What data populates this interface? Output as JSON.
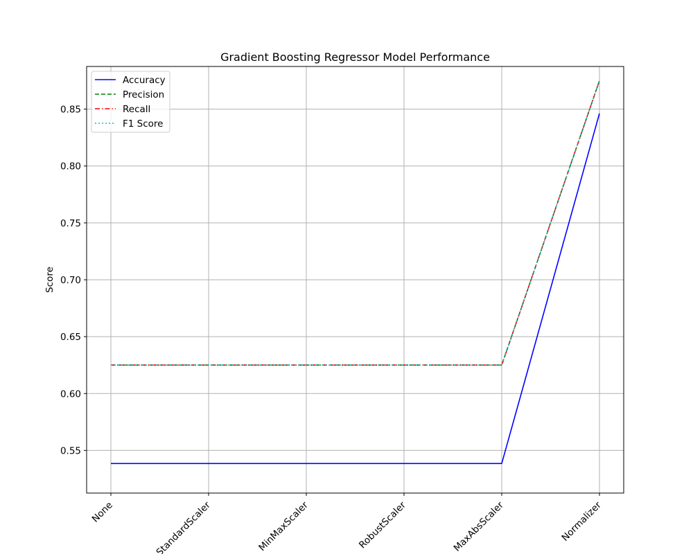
{
  "chart_data": {
    "type": "line",
    "title": "Gradient Boosting Regressor Model Performance",
    "xlabel": "",
    "ylabel": "Score",
    "categories": [
      "None",
      "StandardScaler",
      "MinMaxScaler",
      "RobustScaler",
      "MaxAbsScaler",
      "Normalizer"
    ],
    "ylim": [
      0.5125,
      0.8875
    ],
    "yticks": [
      0.55,
      0.6,
      0.65,
      0.7,
      0.75,
      0.8,
      0.85
    ],
    "ytick_labels": [
      "0.55",
      "0.60",
      "0.65",
      "0.70",
      "0.75",
      "0.80",
      "0.85"
    ],
    "grid": true,
    "legend_position": "upper-left",
    "series": [
      {
        "name": "Accuracy",
        "values": [
          0.5385,
          0.5385,
          0.5385,
          0.5385,
          0.5385,
          0.8462
        ],
        "color": "#0000ff",
        "style": "solid"
      },
      {
        "name": "Precision",
        "values": [
          0.625,
          0.625,
          0.625,
          0.625,
          0.625,
          0.875
        ],
        "color": "#008000",
        "style": "dashed"
      },
      {
        "name": "Recall",
        "values": [
          0.625,
          0.625,
          0.625,
          0.625,
          0.625,
          0.875
        ],
        "color": "#ff0000",
        "style": "dashdot"
      },
      {
        "name": "F1 Score",
        "values": [
          0.625,
          0.625,
          0.625,
          0.625,
          0.625,
          0.875
        ],
        "color": "#00bfbf",
        "style": "dotted"
      }
    ]
  }
}
